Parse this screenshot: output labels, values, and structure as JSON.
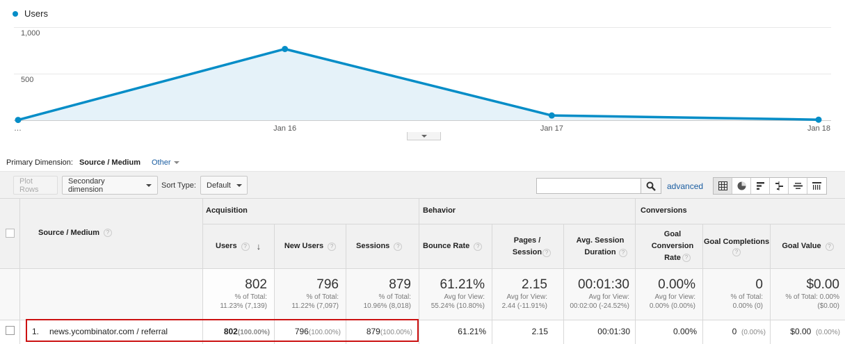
{
  "chart_data": {
    "type": "area",
    "series": [
      {
        "name": "Users",
        "values": [
          3,
          765,
          51,
          6
        ]
      }
    ],
    "x": [
      "…",
      "Jan 16",
      "Jan 17",
      "Jan 18"
    ],
    "ylim": [
      0,
      1000
    ],
    "yticks": [
      "500",
      "1,000"
    ],
    "grid": true,
    "color": "#058dc7",
    "fill": "#e5f2f9"
  },
  "legend_label": "Users",
  "primary_dimension": {
    "label": "Primary Dimension:",
    "current": "Source / Medium",
    "other": "Other"
  },
  "toolbar": {
    "plot_rows": "Plot Rows",
    "secondary_dimension": "Secondary dimension",
    "sort_type_label": "Sort Type:",
    "sort_type_value": "Default",
    "search_placeholder": "",
    "advanced": "advanced",
    "view_icons": [
      "table-view-icon",
      "pie-view-icon",
      "bar-view-icon",
      "comparison-view-icon",
      "term-cloud-view-icon",
      "pivot-view-icon"
    ]
  },
  "table": {
    "groups": {
      "acquisition": "Acquisition",
      "behavior": "Behavior",
      "conversions": "Conversions"
    },
    "dimension_header": "Source / Medium",
    "headers": {
      "users": "Users",
      "new_users": "New Users",
      "sessions": "Sessions",
      "bounce_rate": "Bounce Rate",
      "pages_session": "Pages / Session",
      "avg_session_duration": "Avg. Session Duration",
      "goal_conversion_rate": "Goal Conversion Rate",
      "goal_completions": "Goal Completions",
      "goal_value": "Goal Value"
    },
    "totals": {
      "users": {
        "value": "802",
        "sub1": "% of Total:",
        "sub2": "11.23% (7,139)"
      },
      "new_users": {
        "value": "796",
        "sub1": "% of Total:",
        "sub2": "11.22% (7,097)"
      },
      "sessions": {
        "value": "879",
        "sub1": "% of Total:",
        "sub2": "10.96% (8,018)"
      },
      "bounce_rate": {
        "value": "61.21%",
        "sub1": "Avg for View:",
        "sub2": "55.24% (10.80%)"
      },
      "pages_session": {
        "value": "2.15",
        "sub1": "Avg for View:",
        "sub2": "2.44 (-11.91%)"
      },
      "avg_session_duration": {
        "value": "00:01:30",
        "sub1": "Avg for View:",
        "sub2": "00:02:00 (-24.52%)"
      },
      "goal_conversion_rate": {
        "value": "0.00%",
        "sub1": "Avg for View:",
        "sub2": "0.00% (0.00%)"
      },
      "goal_completions": {
        "value": "0",
        "sub1": "% of Total:",
        "sub2": "0.00% (0)"
      },
      "goal_value": {
        "value": "$0.00",
        "sub1": "% of Total: 0.00%",
        "sub2": "($0.00)"
      }
    },
    "rows": [
      {
        "index": "1.",
        "source": "news.ycombinator.com / referral",
        "users": "802",
        "users_pct": "(100.00%)",
        "new_users": "796",
        "new_users_pct": "(100.00%)",
        "sessions": "879",
        "sessions_pct": "(100.00%)",
        "bounce_rate": "61.21%",
        "pages_session": "2.15",
        "avg_session_duration": "00:01:30",
        "goal_conversion_rate": "0.00%",
        "goal_completions": "0",
        "goal_completions_pct": "(0.00%)",
        "goal_value": "$0.00",
        "goal_value_pct": "(0.00%)"
      }
    ]
  }
}
